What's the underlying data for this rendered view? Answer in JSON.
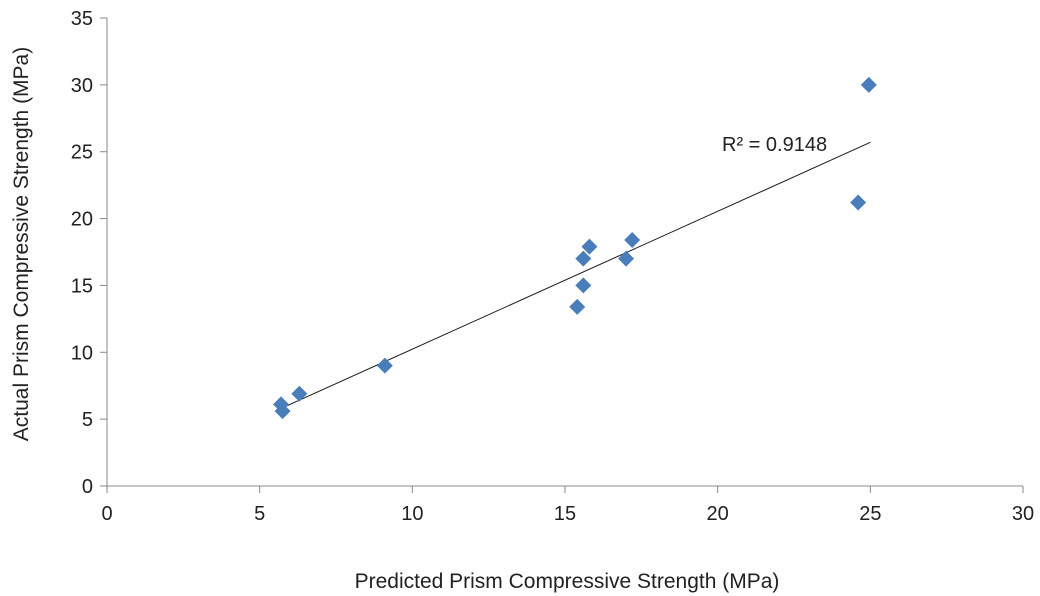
{
  "chart_data": {
    "type": "scatter",
    "title": "",
    "xlabel": "Predicted Prism Compressive Strength (MPa)",
    "ylabel": "Actual Prism Compressive Strength (MPa)",
    "xlim": [
      0,
      30
    ],
    "ylim": [
      0,
      35
    ],
    "xticks": [
      "0",
      "5",
      "10",
      "15",
      "20",
      "25",
      "30"
    ],
    "yticks": [
      "0",
      "5",
      "10",
      "15",
      "20",
      "25",
      "30",
      "35"
    ],
    "grid": false,
    "legend": "none",
    "marker": "diamond",
    "marker_color": "#4a7ebb",
    "series": [
      {
        "x": [
          5.7,
          5.75,
          6.3,
          9.1,
          15.4,
          15.6,
          15.6,
          15.8,
          17.0,
          17.2,
          24.6,
          24.95
        ],
        "y": [
          6.1,
          5.6,
          6.9,
          9.0,
          13.4,
          15.0,
          17.0,
          17.9,
          17.0,
          18.4,
          21.2,
          30.0
        ]
      }
    ],
    "trendline": {
      "type": "linear",
      "x_start": 5.7,
      "x_end": 25.0,
      "y_start": 5.8,
      "y_end": 25.7,
      "label": "R² = 0.9148"
    }
  }
}
